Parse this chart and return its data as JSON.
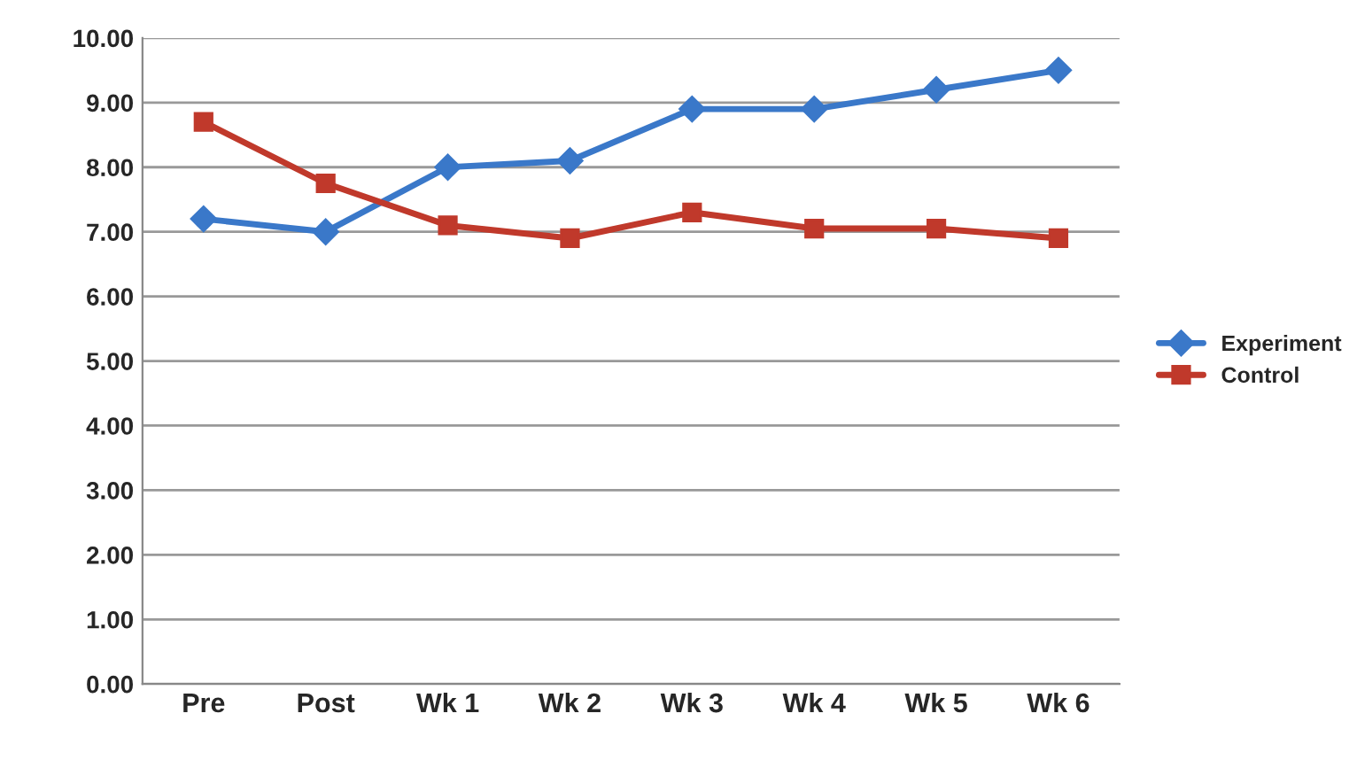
{
  "chart_data": {
    "type": "line",
    "categories": [
      "Pre",
      "Post",
      "Wk 1",
      "Wk 2",
      "Wk 3",
      "Wk 4",
      "Wk 5",
      "Wk 6"
    ],
    "series": [
      {
        "name": "Experiment",
        "color": "#3a78c9",
        "marker": "diamond",
        "values": [
          7.2,
          7.0,
          8.0,
          8.1,
          8.9,
          8.9,
          9.2,
          9.5
        ]
      },
      {
        "name": "Control",
        "color": "#c0392b",
        "marker": "square",
        "values": [
          8.7,
          7.75,
          7.1,
          6.9,
          7.3,
          7.05,
          7.05,
          6.9
        ]
      }
    ],
    "ylim": [
      0,
      10
    ],
    "yticks": [
      {
        "value": 0,
        "label": "0.00"
      },
      {
        "value": 1,
        "label": "1.00"
      },
      {
        "value": 2,
        "label": "2.00"
      },
      {
        "value": 3,
        "label": "3.00"
      },
      {
        "value": 4,
        "label": "4.00"
      },
      {
        "value": 5,
        "label": "5.00"
      },
      {
        "value": 6,
        "label": "6.00"
      },
      {
        "value": 7,
        "label": "7.00"
      },
      {
        "value": 8,
        "label": "8.00"
      },
      {
        "value": 9,
        "label": "9.00"
      },
      {
        "value": 10,
        "label": "10.00"
      }
    ],
    "grid": "y",
    "legend": "right",
    "line_style": "solid"
  }
}
